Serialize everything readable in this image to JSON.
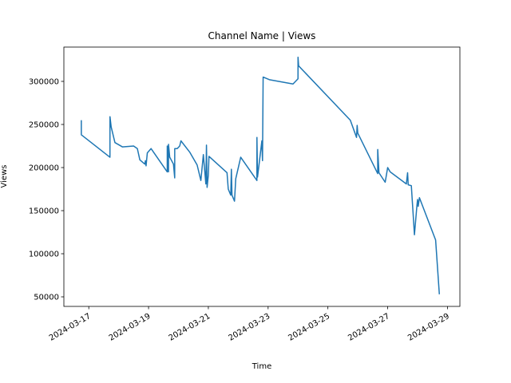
{
  "chart_data": {
    "type": "line",
    "title": "Channel Name | Views",
    "xlabel": "Time",
    "ylabel": "Views",
    "x": [
      "2024-03-16T18:00",
      "2024-03-16T18:01",
      "2024-03-17T17:00",
      "2024-03-17T17:01",
      "2024-03-17T18:00",
      "2024-03-17T21:00",
      "2024-03-18T03:00",
      "2024-03-18T12:00",
      "2024-03-18T15:00",
      "2024-03-18T17:00",
      "2024-03-18T21:00",
      "2024-03-18T21:30",
      "2024-03-18T22:00",
      "2024-03-18T23:00",
      "2024-03-19T02:00",
      "2024-03-19T15:00",
      "2024-03-19T15:01",
      "2024-03-19T16:00",
      "2024-03-19T16:01",
      "2024-03-19T17:00",
      "2024-03-19T20:00",
      "2024-03-19T21:00",
      "2024-03-19T21:01",
      "2024-03-19T23:00",
      "2024-03-20T01:00",
      "2024-03-20T02:00",
      "2024-03-20T09:00",
      "2024-03-20T15:00",
      "2024-03-20T18:00",
      "2024-03-20T20:00",
      "2024-03-20T22:00",
      "2024-03-20T22:30",
      "2024-03-20T23:00",
      "2024-03-21T00:00",
      "2024-03-21T00:30",
      "2024-03-21T15:00",
      "2024-03-21T16:00",
      "2024-03-21T18:00",
      "2024-03-21T18:30",
      "2024-03-21T19:00",
      "2024-03-21T21:00",
      "2024-03-21T22:00",
      "2024-03-22T02:00",
      "2024-03-22T15:00",
      "2024-03-22T15:01",
      "2024-03-22T15:30",
      "2024-03-22T19:00",
      "2024-03-22T19:30",
      "2024-03-22T20:00",
      "2024-03-23T01:00",
      "2024-03-23T20:00",
      "2024-03-24T00:00",
      "2024-03-24T00:01",
      "2024-03-24T00:30",
      "2024-03-25T18:00",
      "2024-03-25T23:00",
      "2024-03-25T23:30",
      "2024-03-26T00:00",
      "2024-03-26T16:00",
      "2024-03-26T16:01",
      "2024-03-26T17:00",
      "2024-03-26T22:00",
      "2024-03-27T00:00",
      "2024-03-27T02:00",
      "2024-03-27T15:00",
      "2024-03-27T16:00",
      "2024-03-27T16:30",
      "2024-03-27T19:00",
      "2024-03-27T21:30",
      "2024-03-27T23:30",
      "2024-03-28T00:00",
      "2024-03-28T00:30",
      "2024-03-28T01:30",
      "2024-03-28T14:30",
      "2024-03-28T17:30"
    ],
    "series": [
      {
        "name": "Views",
        "color": "#1f77b4",
        "values": [
          255000,
          238000,
          212000,
          259000,
          247000,
          229000,
          224000,
          225000,
          222000,
          209000,
          204000,
          208000,
          202000,
          217000,
          222000,
          195000,
          225000,
          195000,
          227000,
          212000,
          204000,
          188000,
          222000,
          222000,
          225000,
          231000,
          218000,
          203000,
          185000,
          215000,
          181000,
          226000,
          177000,
          191000,
          213000,
          194000,
          175000,
          168000,
          198000,
          168000,
          161000,
          187000,
          212000,
          185000,
          235000,
          189000,
          231000,
          208000,
          305000,
          302000,
          297000,
          303000,
          328000,
          318000,
          255000,
          235000,
          249000,
          240000,
          193000,
          221000,
          194000,
          183000,
          200000,
          195000,
          181000,
          194000,
          180000,
          179000,
          122000,
          156000,
          163000,
          155000,
          165000,
          116000,
          53000
        ]
      }
    ],
    "xlim": [
      "2024-03-16T04:00",
      "2024-03-29T10:00"
    ],
    "xticks": [
      "2024-03-17",
      "2024-03-19",
      "2024-03-21",
      "2024-03-23",
      "2024-03-25",
      "2024-03-27",
      "2024-03-29"
    ],
    "ylim": [
      38900,
      339800
    ],
    "yticks": [
      50000,
      100000,
      150000,
      200000,
      250000,
      300000
    ]
  }
}
